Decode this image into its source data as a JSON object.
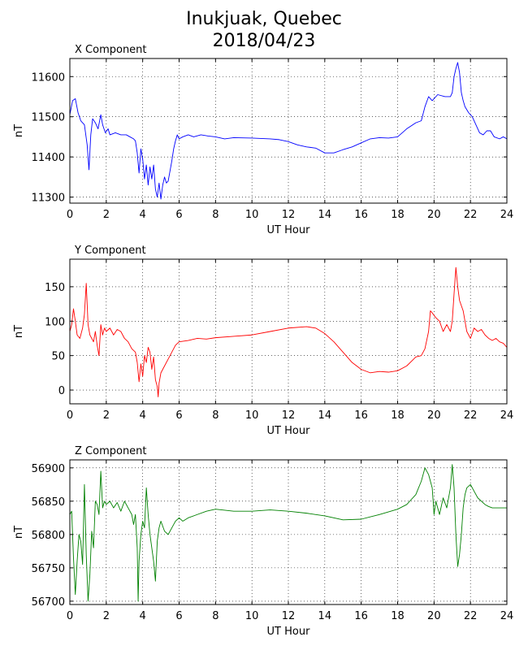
{
  "page": {
    "title_line1": "Inukjuak, Quebec",
    "title_line2": "2018/04/23"
  },
  "chart_data": [
    {
      "type": "line",
      "title": "X Component",
      "xlabel": "UT Hour",
      "ylabel": "nT",
      "xlim": [
        0,
        24
      ],
      "ylim": [
        11285,
        11645
      ],
      "xticks": [
        0,
        2,
        4,
        6,
        8,
        10,
        12,
        14,
        16,
        18,
        20,
        22,
        24
      ],
      "yticks": [
        11300,
        11400,
        11500,
        11600
      ],
      "grid": true,
      "color": "#0000ff",
      "points": [
        [
          0,
          11505
        ],
        [
          0.15,
          11540
        ],
        [
          0.3,
          11545
        ],
        [
          0.45,
          11510
        ],
        [
          0.6,
          11490
        ],
        [
          0.8,
          11480
        ],
        [
          0.95,
          11430
        ],
        [
          1.05,
          11368
        ],
        [
          1.15,
          11455
        ],
        [
          1.25,
          11495
        ],
        [
          1.4,
          11485
        ],
        [
          1.55,
          11470
        ],
        [
          1.7,
          11505
        ],
        [
          1.8,
          11480
        ],
        [
          1.95,
          11460
        ],
        [
          2.1,
          11470
        ],
        [
          2.2,
          11455
        ],
        [
          2.5,
          11460
        ],
        [
          2.8,
          11455
        ],
        [
          3.1,
          11455
        ],
        [
          3.3,
          11450
        ],
        [
          3.5,
          11445
        ],
        [
          3.6,
          11440
        ],
        [
          3.7,
          11410
        ],
        [
          3.8,
          11360
        ],
        [
          3.9,
          11420
        ],
        [
          4.0,
          11395
        ],
        [
          4.1,
          11345
        ],
        [
          4.2,
          11380
        ],
        [
          4.3,
          11330
        ],
        [
          4.4,
          11375
        ],
        [
          4.5,
          11345
        ],
        [
          4.6,
          11380
        ],
        [
          4.7,
          11320
        ],
        [
          4.8,
          11300
        ],
        [
          4.9,
          11335
        ],
        [
          5.0,
          11295
        ],
        [
          5.1,
          11330
        ],
        [
          5.2,
          11350
        ],
        [
          5.3,
          11335
        ],
        [
          5.4,
          11340
        ],
        [
          5.5,
          11365
        ],
        [
          5.6,
          11390
        ],
        [
          5.7,
          11420
        ],
        [
          5.8,
          11440
        ],
        [
          5.9,
          11455
        ],
        [
          6.0,
          11445
        ],
        [
          6.2,
          11450
        ],
        [
          6.5,
          11455
        ],
        [
          6.8,
          11450
        ],
        [
          7.2,
          11455
        ],
        [
          7.6,
          11452
        ],
        [
          8.0,
          11450
        ],
        [
          8.5,
          11445
        ],
        [
          9.0,
          11448
        ],
        [
          10.0,
          11447
        ],
        [
          11.0,
          11445
        ],
        [
          11.5,
          11443
        ],
        [
          12.0,
          11438
        ],
        [
          12.5,
          11430
        ],
        [
          13.0,
          11425
        ],
        [
          13.5,
          11422
        ],
        [
          14.0,
          11410
        ],
        [
          14.5,
          11410
        ],
        [
          15.0,
          11418
        ],
        [
          15.5,
          11425
        ],
        [
          16.0,
          11435
        ],
        [
          16.5,
          11445
        ],
        [
          17.0,
          11448
        ],
        [
          17.5,
          11447
        ],
        [
          18.0,
          11450
        ],
        [
          18.5,
          11470
        ],
        [
          19.0,
          11485
        ],
        [
          19.3,
          11490
        ],
        [
          19.5,
          11525
        ],
        [
          19.7,
          11550
        ],
        [
          19.9,
          11540
        ],
        [
          20.2,
          11555
        ],
        [
          20.6,
          11550
        ],
        [
          20.9,
          11550
        ],
        [
          21.0,
          11560
        ],
        [
          21.1,
          11600
        ],
        [
          21.2,
          11620
        ],
        [
          21.3,
          11635
        ],
        [
          21.4,
          11610
        ],
        [
          21.5,
          11560
        ],
        [
          21.6,
          11540
        ],
        [
          21.7,
          11525
        ],
        [
          21.9,
          11510
        ],
        [
          22.1,
          11500
        ],
        [
          22.3,
          11480
        ],
        [
          22.5,
          11460
        ],
        [
          22.7,
          11455
        ],
        [
          22.9,
          11465
        ],
        [
          23.1,
          11465
        ],
        [
          23.3,
          11450
        ],
        [
          23.6,
          11445
        ],
        [
          23.8,
          11450
        ],
        [
          24.0,
          11445
        ]
      ]
    },
    {
      "type": "line",
      "title": "Y Component",
      "xlabel": "UT Hour",
      "ylabel": "nT",
      "xlim": [
        0,
        24
      ],
      "ylim": [
        -20,
        190
      ],
      "xticks": [
        0,
        2,
        4,
        6,
        8,
        10,
        12,
        14,
        16,
        18,
        20,
        22,
        24
      ],
      "yticks": [
        0,
        50,
        100,
        150
      ],
      "grid": true,
      "color": "#ff0000",
      "points": [
        [
          0,
          85
        ],
        [
          0.1,
          95
        ],
        [
          0.2,
          118
        ],
        [
          0.3,
          100
        ],
        [
          0.4,
          80
        ],
        [
          0.55,
          75
        ],
        [
          0.7,
          90
        ],
        [
          0.8,
          110
        ],
        [
          0.9,
          155
        ],
        [
          1.0,
          95
        ],
        [
          1.1,
          80
        ],
        [
          1.2,
          75
        ],
        [
          1.3,
          70
        ],
        [
          1.4,
          85
        ],
        [
          1.5,
          65
        ],
        [
          1.6,
          50
        ],
        [
          1.7,
          95
        ],
        [
          1.8,
          80
        ],
        [
          1.9,
          90
        ],
        [
          2.0,
          85
        ],
        [
          2.2,
          90
        ],
        [
          2.4,
          80
        ],
        [
          2.6,
          88
        ],
        [
          2.8,
          85
        ],
        [
          3.0,
          75
        ],
        [
          3.2,
          70
        ],
        [
          3.4,
          60
        ],
        [
          3.6,
          55
        ],
        [
          3.7,
          40
        ],
        [
          3.8,
          12
        ],
        [
          3.9,
          38
        ],
        [
          4.0,
          20
        ],
        [
          4.1,
          50
        ],
        [
          4.2,
          40
        ],
        [
          4.3,
          62
        ],
        [
          4.4,
          55
        ],
        [
          4.5,
          30
        ],
        [
          4.6,
          48
        ],
        [
          4.7,
          15
        ],
        [
          4.8,
          5
        ],
        [
          4.85,
          -10
        ],
        [
          4.9,
          10
        ],
        [
          5.0,
          25
        ],
        [
          5.2,
          35
        ],
        [
          5.4,
          45
        ],
        [
          5.6,
          55
        ],
        [
          5.8,
          65
        ],
        [
          6.0,
          70
        ],
        [
          6.5,
          72
        ],
        [
          7.0,
          75
        ],
        [
          7.5,
          74
        ],
        [
          8.0,
          76
        ],
        [
          9.0,
          78
        ],
        [
          10.0,
          80
        ],
        [
          11.0,
          85
        ],
        [
          12.0,
          90
        ],
        [
          13.0,
          92
        ],
        [
          13.5,
          90
        ],
        [
          14.0,
          82
        ],
        [
          14.5,
          70
        ],
        [
          15.0,
          55
        ],
        [
          15.5,
          40
        ],
        [
          16.0,
          30
        ],
        [
          16.5,
          25
        ],
        [
          17.0,
          27
        ],
        [
          17.5,
          26
        ],
        [
          18.0,
          28
        ],
        [
          18.5,
          35
        ],
        [
          19.0,
          48
        ],
        [
          19.3,
          50
        ],
        [
          19.5,
          60
        ],
        [
          19.7,
          85
        ],
        [
          19.8,
          115
        ],
        [
          19.9,
          112
        ],
        [
          20.1,
          105
        ],
        [
          20.3,
          100
        ],
        [
          20.5,
          85
        ],
        [
          20.7,
          95
        ],
        [
          20.9,
          85
        ],
        [
          21.0,
          100
        ],
        [
          21.1,
          140
        ],
        [
          21.2,
          178
        ],
        [
          21.3,
          150
        ],
        [
          21.4,
          130
        ],
        [
          21.6,
          115
        ],
        [
          21.7,
          100
        ],
        [
          21.8,
          85
        ],
        [
          22.0,
          75
        ],
        [
          22.2,
          90
        ],
        [
          22.4,
          85
        ],
        [
          22.6,
          88
        ],
        [
          22.8,
          80
        ],
        [
          23.0,
          75
        ],
        [
          23.2,
          72
        ],
        [
          23.4,
          75
        ],
        [
          23.6,
          70
        ],
        [
          23.8,
          68
        ],
        [
          24.0,
          62
        ]
      ]
    },
    {
      "type": "line",
      "title": "Z Component",
      "xlabel": "UT Hour",
      "ylabel": "nT",
      "xlim": [
        0,
        24
      ],
      "ylim": [
        56695,
        56912
      ],
      "xticks": [
        0,
        2,
        4,
        6,
        8,
        10,
        12,
        14,
        16,
        18,
        20,
        22,
        24
      ],
      "yticks": [
        56700,
        56750,
        56800,
        56850,
        56900
      ],
      "grid": true,
      "color": "#008000",
      "points": [
        [
          0,
          56830
        ],
        [
          0.1,
          56835
        ],
        [
          0.2,
          56765
        ],
        [
          0.3,
          56710
        ],
        [
          0.4,
          56760
        ],
        [
          0.5,
          56800
        ],
        [
          0.6,
          56790
        ],
        [
          0.7,
          56755
        ],
        [
          0.8,
          56875
        ],
        [
          0.9,
          56770
        ],
        [
          1.0,
          56700
        ],
        [
          1.1,
          56740
        ],
        [
          1.2,
          56805
        ],
        [
          1.3,
          56780
        ],
        [
          1.4,
          56850
        ],
        [
          1.5,
          56845
        ],
        [
          1.6,
          56830
        ],
        [
          1.7,
          56895
        ],
        [
          1.8,
          56840
        ],
        [
          1.9,
          56850
        ],
        [
          2.0,
          56845
        ],
        [
          2.2,
          56850
        ],
        [
          2.4,
          56840
        ],
        [
          2.6,
          56848
        ],
        [
          2.8,
          56835
        ],
        [
          3.0,
          56850
        ],
        [
          3.2,
          56840
        ],
        [
          3.4,
          56830
        ],
        [
          3.5,
          56815
        ],
        [
          3.6,
          56830
        ],
        [
          3.7,
          56780
        ],
        [
          3.75,
          56700
        ],
        [
          3.8,
          56760
        ],
        [
          3.9,
          56800
        ],
        [
          4.0,
          56820
        ],
        [
          4.1,
          56810
        ],
        [
          4.2,
          56870
        ],
        [
          4.3,
          56830
        ],
        [
          4.4,
          56800
        ],
        [
          4.5,
          56780
        ],
        [
          4.6,
          56760
        ],
        [
          4.7,
          56730
        ],
        [
          4.8,
          56790
        ],
        [
          4.9,
          56810
        ],
        [
          5.0,
          56820
        ],
        [
          5.2,
          56805
        ],
        [
          5.4,
          56800
        ],
        [
          5.6,
          56810
        ],
        [
          5.8,
          56820
        ],
        [
          6.0,
          56825
        ],
        [
          6.2,
          56820
        ],
        [
          6.5,
          56825
        ],
        [
          7.0,
          56830
        ],
        [
          7.5,
          56835
        ],
        [
          8.0,
          56838
        ],
        [
          9.0,
          56835
        ],
        [
          10.0,
          56835
        ],
        [
          11.0,
          56837
        ],
        [
          12.0,
          56835
        ],
        [
          13.0,
          56832
        ],
        [
          14.0,
          56828
        ],
        [
          15.0,
          56822
        ],
        [
          16.0,
          56823
        ],
        [
          17.0,
          56830
        ],
        [
          18.0,
          56838
        ],
        [
          18.5,
          56845
        ],
        [
          19.0,
          56860
        ],
        [
          19.3,
          56880
        ],
        [
          19.5,
          56900
        ],
        [
          19.7,
          56890
        ],
        [
          19.9,
          56870
        ],
        [
          20.0,
          56830
        ],
        [
          20.1,
          56850
        ],
        [
          20.3,
          56830
        ],
        [
          20.5,
          56855
        ],
        [
          20.7,
          56840
        ],
        [
          20.9,
          56870
        ],
        [
          21.0,
          56905
        ],
        [
          21.1,
          56870
        ],
        [
          21.2,
          56800
        ],
        [
          21.3,
          56752
        ],
        [
          21.4,
          56770
        ],
        [
          21.5,
          56800
        ],
        [
          21.6,
          56840
        ],
        [
          21.7,
          56860
        ],
        [
          21.8,
          56870
        ],
        [
          22.0,
          56875
        ],
        [
          22.2,
          56865
        ],
        [
          22.4,
          56855
        ],
        [
          22.6,
          56850
        ],
        [
          22.8,
          56845
        ],
        [
          23.0,
          56842
        ],
        [
          23.2,
          56840
        ],
        [
          23.5,
          56840
        ],
        [
          24.0,
          56840
        ]
      ]
    }
  ]
}
